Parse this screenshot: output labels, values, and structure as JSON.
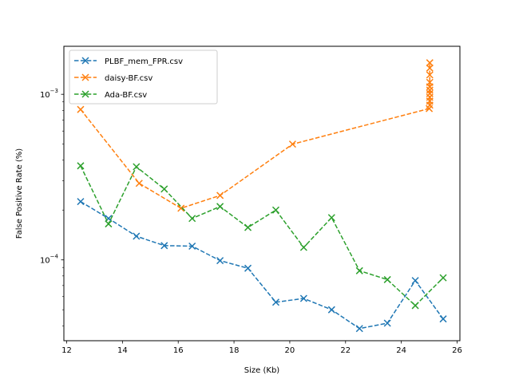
{
  "chart_data": {
    "type": "line",
    "title": "",
    "xlabel": "Size (Kb)",
    "ylabel": "False Positive Rate (%)",
    "xlim": [
      11.9,
      26.1
    ],
    "ylim": [
      3.25e-05,
      0.00195
    ],
    "yscale": "log",
    "grid": false,
    "legend_position": "top-left",
    "x_ticks": [
      12,
      14,
      16,
      18,
      20,
      22,
      24,
      26
    ],
    "x_tick_labels": [
      "12",
      "14",
      "16",
      "18",
      "20",
      "22",
      "24",
      "26"
    ],
    "y_ticks": [
      0.0001,
      0.001
    ],
    "y_tick_base": "10",
    "y_tick_exponents": [
      "−4",
      "−3"
    ],
    "series": [
      {
        "name": "PLBF_mem_FPR.csv",
        "color": "#1f77b4",
        "marker": "x",
        "linestyle": "dashed",
        "x": [
          12.5,
          13.5,
          14.5,
          15.5,
          16.5,
          17.5,
          18.5,
          19.5,
          20.5,
          21.5,
          22.5,
          23.5,
          24.5,
          25.5
        ],
        "y": [
          0.000225,
          0.000178,
          0.000139,
          0.000122,
          0.000121,
          9.9e-05,
          8.9e-05,
          5.55e-05,
          5.85e-05,
          5e-05,
          3.85e-05,
          4.15e-05,
          7.5e-05,
          4.4e-05
        ]
      },
      {
        "name": "daisy-BF.csv",
        "color": "#ff7f0e",
        "marker": "x",
        "linestyle": "dashed",
        "x": [
          12.5,
          14.6,
          16.1,
          17.5,
          20.1,
          25.0,
          25.02,
          25.02,
          25.02,
          25.02,
          25.02,
          25.02,
          25.02,
          25.02,
          25.02,
          25.02
        ],
        "y": [
          0.00081,
          0.00029,
          0.000205,
          0.000245,
          0.0005,
          0.00082,
          0.00086,
          0.00091,
          0.00096,
          0.00101,
          0.00106,
          0.00111,
          0.00118,
          0.00131,
          0.00144,
          0.00155
        ]
      },
      {
        "name": "Ada-BF.csv",
        "color": "#2ca02c",
        "marker": "x",
        "linestyle": "dashed",
        "x": [
          12.5,
          13.5,
          14.5,
          15.5,
          16.5,
          17.5,
          18.5,
          19.5,
          20.5,
          21.5,
          22.5,
          23.5,
          24.5,
          25.5
        ],
        "y": [
          0.00037,
          0.000165,
          0.000365,
          0.000268,
          0.000178,
          0.00021,
          0.000157,
          0.0002,
          0.000119,
          0.00018,
          8.6e-05,
          7.6e-05,
          5.3e-05,
          7.8e-05
        ]
      }
    ]
  }
}
